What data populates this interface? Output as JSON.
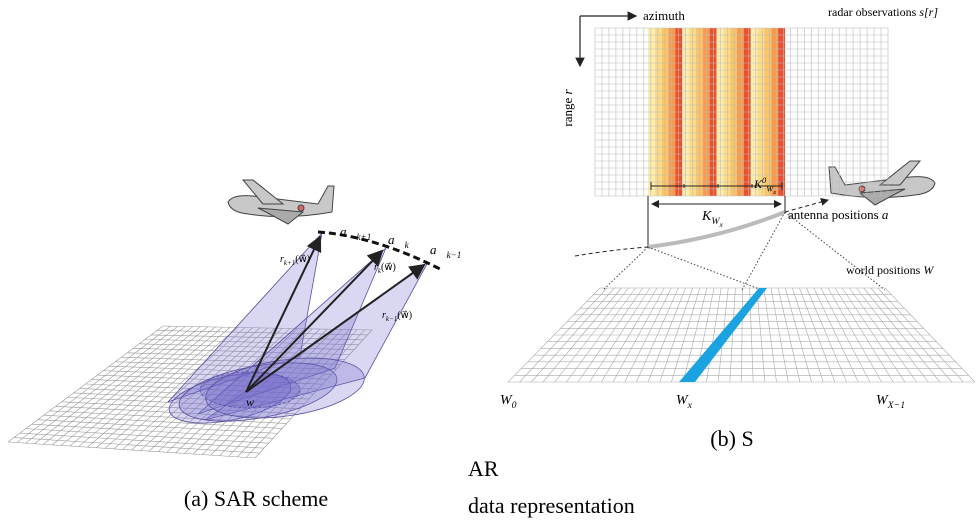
{
  "panel_a": {
    "labels": {
      "a_next": {
        "base": "a⃗",
        "sub": "k+1"
      },
      "a_cur": {
        "base": "a⃗",
        "sub": "k"
      },
      "a_prev": {
        "base": "a⃗",
        "sub": "k−1"
      },
      "r_next": {
        "base": "r",
        "sub": "k+1",
        "tail": "(w⃗)"
      },
      "r_cur": {
        "base": "r",
        "sub": "k",
        "tail": "(w⃗)"
      },
      "r_prev": {
        "base": "r",
        "sub": "k−1",
        "tail": "(w⃗)"
      },
      "w": {
        "base": "w⃗"
      }
    },
    "caption": "(a) SAR scheme"
  },
  "panel_b": {
    "labels": {
      "azimuth": {
        "text": "azimuth"
      },
      "range": {
        "text": "range",
        "math": "r"
      },
      "observations": {
        "text": "radar observations",
        "math": "s[r]"
      },
      "k0": {
        "base": "K",
        "sup": "0",
        "sub": "W",
        "subsub": "x"
      },
      "k": {
        "base": "K",
        "sub": "W",
        "subsub": "x"
      },
      "antenna": {
        "text": "antenna positions",
        "math": "a⃗"
      },
      "world": {
        "text": "world positions",
        "math": "W"
      },
      "w0": {
        "base": "W",
        "sub": "0"
      },
      "wx": {
        "base": "W",
        "sub": "x"
      },
      "wlast": {
        "base": "W",
        "sub": "X−1"
      }
    },
    "caption": "(b) S"
  },
  "text_block": [
    "AR",
    "data representation"
  ]
}
